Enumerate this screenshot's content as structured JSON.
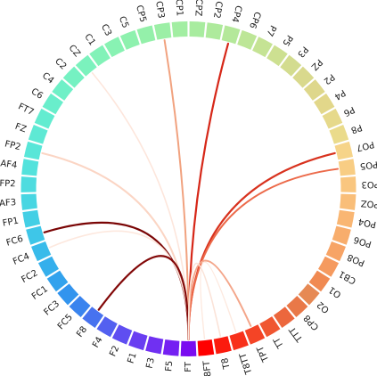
{
  "chart_data": {
    "type": "chord",
    "title": "",
    "nodes": [
      {
        "label": "FT",
        "color": "#7a0cf0"
      },
      {
        "label": "T8FT",
        "color": "#ff0000"
      },
      {
        "label": "T8",
        "color": "#fb1b0e"
      },
      {
        "label": "T8TT",
        "color": "#f8301a"
      },
      {
        "label": "TPT",
        "color": "#f44426"
      },
      {
        "label": "TT",
        "color": "#f05631"
      },
      {
        "label": "TTT",
        "color": "#ec673d"
      },
      {
        "label": "CP8",
        "color": "#e97848"
      },
      {
        "label": "O2",
        "color": "#e68954"
      },
      {
        "label": "O1",
        "color": "#f08a52"
      },
      {
        "label": "CB1",
        "color": "#f59a5f"
      },
      {
        "label": "PO8",
        "color": "#f7a466"
      },
      {
        "label": "PO6",
        "color": "#f8ad6c"
      },
      {
        "label": "PO4",
        "color": "#f9b673"
      },
      {
        "label": "POZ",
        "color": "#f9be79"
      },
      {
        "label": "PO3",
        "color": "#f9c67f"
      },
      {
        "label": "PO5",
        "color": "#f8cd84"
      },
      {
        "label": "PO7",
        "color": "#f6d489"
      },
      {
        "label": "P8",
        "color": "#eadb8b"
      },
      {
        "label": "P6",
        "color": "#e6d98b"
      },
      {
        "label": "P4",
        "color": "#e2d78a"
      },
      {
        "label": "P2",
        "color": "#ded78b"
      },
      {
        "label": "PZ",
        "color": "#d9d98d"
      },
      {
        "label": "P3",
        "color": "#d3dc8f"
      },
      {
        "label": "P5",
        "color": "#cde091"
      },
      {
        "label": "P7",
        "color": "#c5e394"
      },
      {
        "label": "CP6",
        "color": "#bde697"
      },
      {
        "label": "CP4",
        "color": "#b4e89a"
      },
      {
        "label": "CP2",
        "color": "#aeea9c"
      },
      {
        "label": "CPZ",
        "color": "#a8ec9f"
      },
      {
        "label": "CP1",
        "color": "#a2eea2"
      },
      {
        "label": "CP3",
        "color": "#9cefa6"
      },
      {
        "label": "CP5",
        "color": "#94f0aa"
      },
      {
        "label": "C5",
        "color": "#8ef1ae"
      },
      {
        "label": "C3",
        "color": "#88f2b3"
      },
      {
        "label": "C1",
        "color": "#82f2b8"
      },
      {
        "label": "CZ",
        "color": "#7bf2bd"
      },
      {
        "label": "C2",
        "color": "#75f1c2"
      },
      {
        "label": "C4",
        "color": "#6ff0c7"
      },
      {
        "label": "C6",
        "color": "#69eecb"
      },
      {
        "label": "FT7",
        "color": "#63ecd0"
      },
      {
        "label": "FZ",
        "color": "#5ee9d4"
      },
      {
        "label": "FP2",
        "color": "#58e6d8"
      },
      {
        "label": "AF4",
        "color": "#53e2dc"
      },
      {
        "label": "FP2",
        "color": "#4edcdf"
      },
      {
        "label": "AF3",
        "color": "#48d6e2"
      },
      {
        "label": "FP1",
        "color": "#43cfe5"
      },
      {
        "label": "FC6",
        "color": "#3ec6e8"
      },
      {
        "label": "FC4",
        "color": "#39bbea"
      },
      {
        "label": "FC2",
        "color": "#35afec"
      },
      {
        "label": "FC1",
        "color": "#32a2ed"
      },
      {
        "label": "FC3",
        "color": "#3294ee"
      },
      {
        "label": "FC5",
        "color": "#3a84ee"
      },
      {
        "label": "F8",
        "color": "#4772ef"
      },
      {
        "label": "F4",
        "color": "#5360f0"
      },
      {
        "label": "F2",
        "color": "#5f4ef1"
      },
      {
        "label": "F1",
        "color": "#693ef1"
      },
      {
        "label": "F3",
        "color": "#7030f2"
      },
      {
        "label": "F5",
        "color": "#7520f2"
      }
    ],
    "links": [
      {
        "source": 0,
        "target": 27,
        "color": "#d62718",
        "weight": 2.2
      },
      {
        "source": 0,
        "target": 17,
        "color": "#d8321e",
        "weight": 2.2
      },
      {
        "source": 0,
        "target": 16,
        "color": "#ec6a4a",
        "weight": 2.0
      },
      {
        "source": 0,
        "target": 31,
        "color": "#f1a27f",
        "weight": 2.0
      },
      {
        "source": 0,
        "target": 42,
        "color": "#fbd5c4",
        "weight": 2.0
      },
      {
        "source": 0,
        "target": 36,
        "color": "#fde6dc",
        "weight": 1.6
      },
      {
        "source": 0,
        "target": 47,
        "color": "#7a0505",
        "weight": 2.2
      },
      {
        "source": 0,
        "target": 48,
        "color": "#fde8de",
        "weight": 1.6
      },
      {
        "source": 0,
        "target": 53,
        "color": "#820808",
        "weight": 2.2
      },
      {
        "source": 0,
        "target": 4,
        "color": "#f4a68a",
        "weight": 2.0
      },
      {
        "source": 0,
        "target": 2,
        "color": "#fbe3d8",
        "weight": 1.6
      },
      {
        "source": 1,
        "target": 3,
        "color": "#fde9df",
        "weight": 1.4
      }
    ]
  }
}
